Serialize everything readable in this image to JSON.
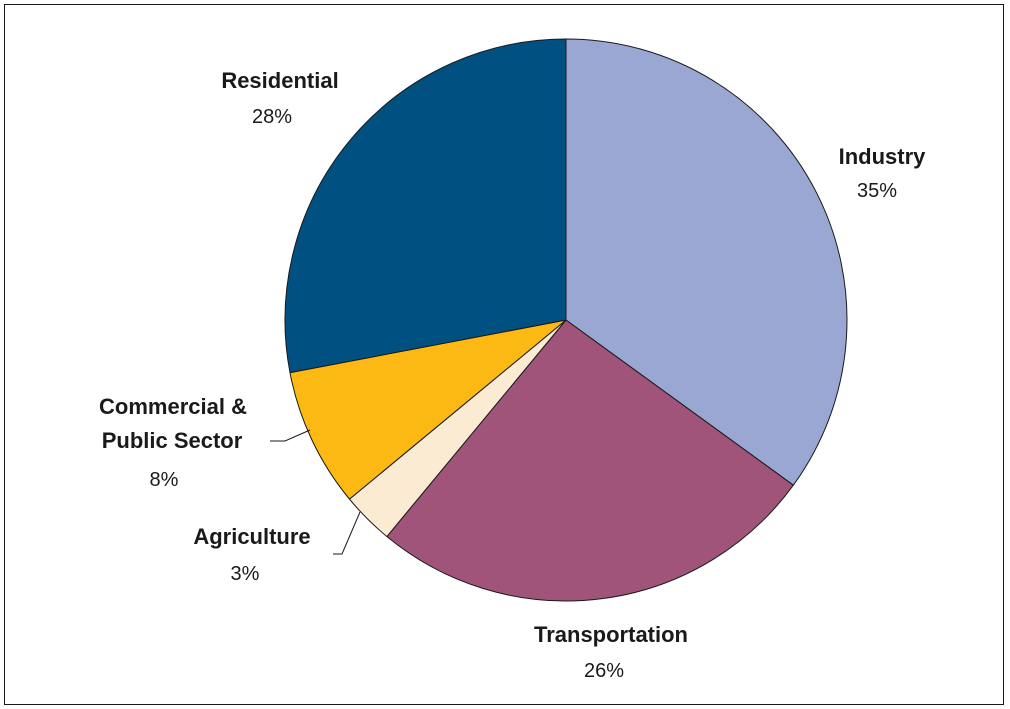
{
  "chart_data": {
    "type": "pie",
    "title": "",
    "slices": [
      {
        "label": "Industry",
        "value": 35,
        "display": "35%",
        "color": "#9BA7D3"
      },
      {
        "label": "Transportation",
        "value": 26,
        "display": "26%",
        "color": "#A05479"
      },
      {
        "label": "Agriculture",
        "value": 3,
        "display": "3%",
        "color": "#FAEBD2"
      },
      {
        "label": "Commercial & Public Sector",
        "label_lines": [
          "Commercial &",
          "Public Sector"
        ],
        "value": 8,
        "display": "8%",
        "color": "#FDB913"
      },
      {
        "label": "Residential",
        "value": 28,
        "display": "28%",
        "color": "#005082"
      }
    ],
    "start_angle_deg": 0,
    "direction": "clockwise",
    "legend": "none"
  }
}
